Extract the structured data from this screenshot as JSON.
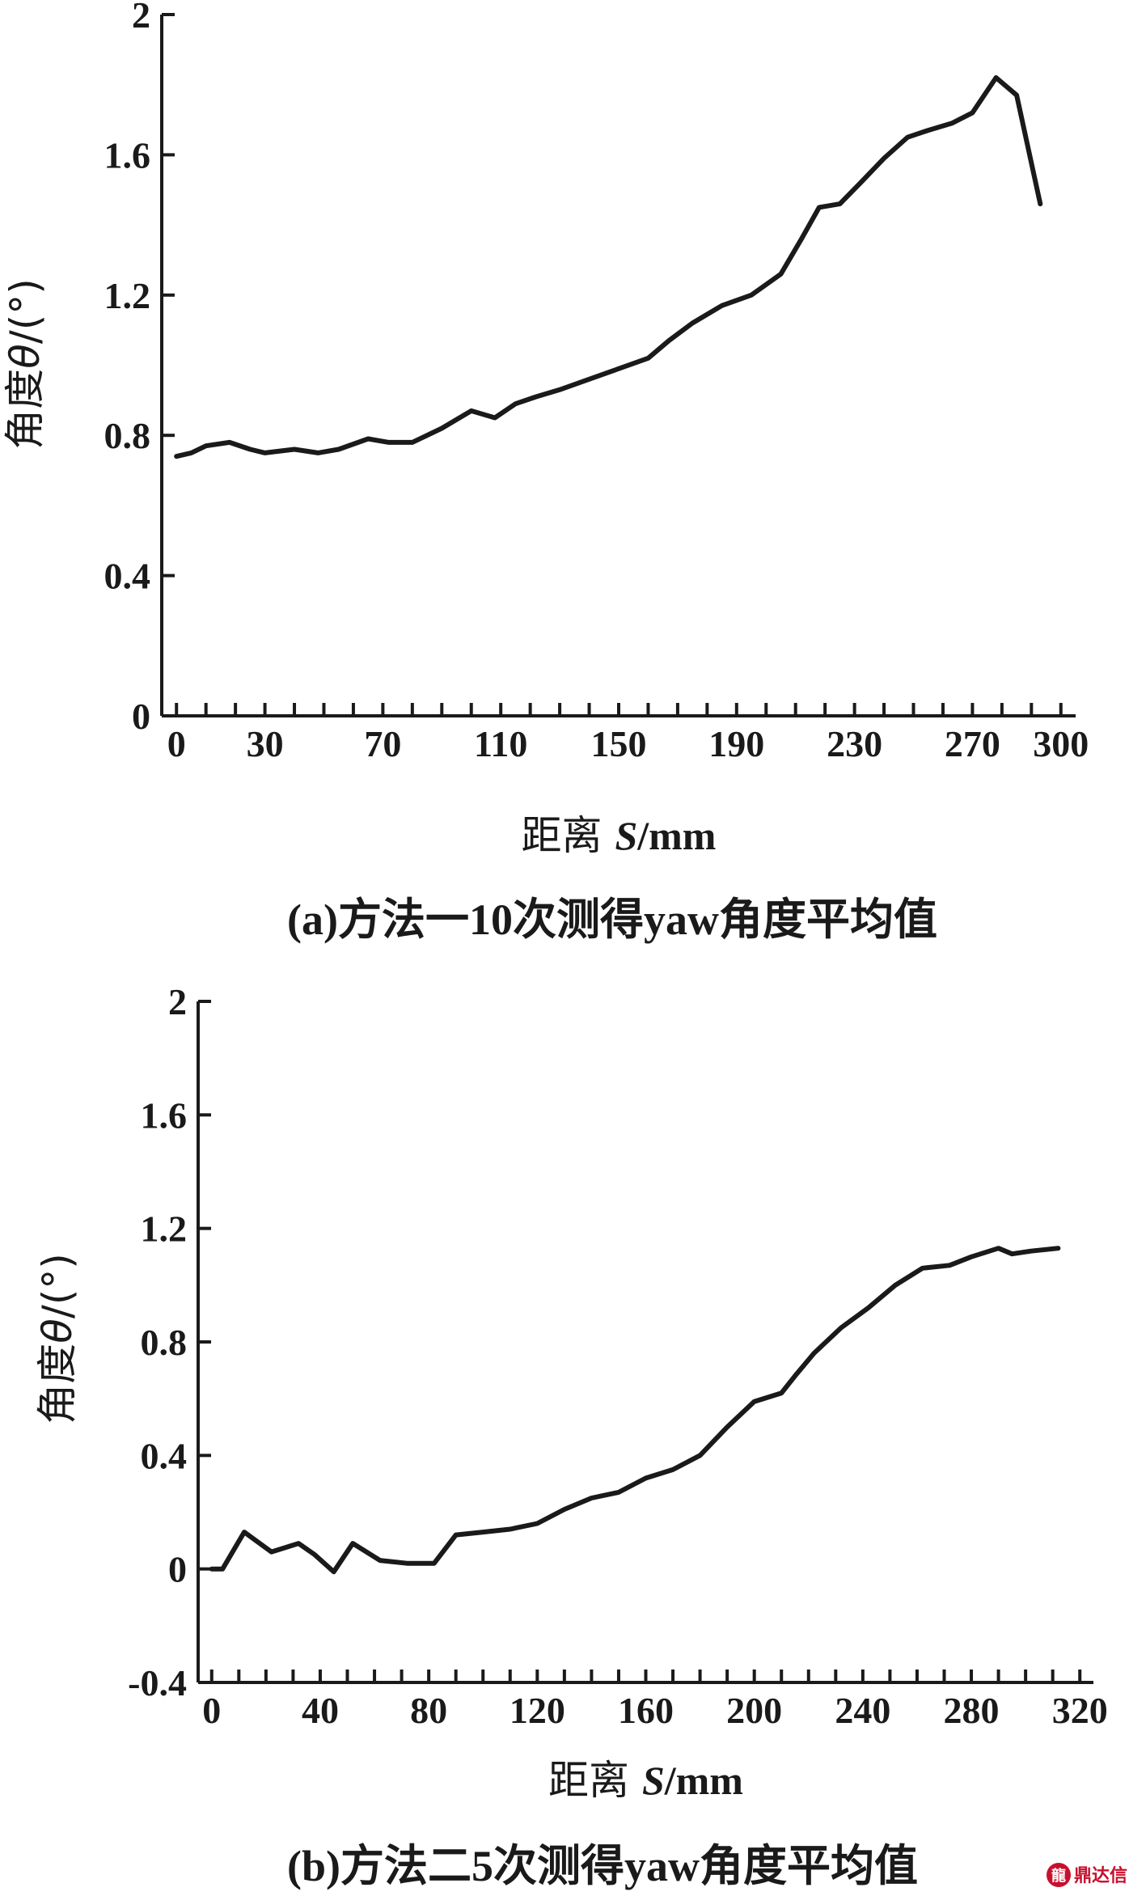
{
  "chart_data": [
    {
      "type": "line",
      "title": "",
      "caption": "(a)方法一10次测得yaw角度平均值",
      "xlabel": "距离 S/mm",
      "ylabel": "角度θ/(°)",
      "xlabel_parts": [
        "距离 ",
        "S",
        "/mm"
      ],
      "ylabel_parts": [
        "角度",
        "θ",
        "/(°)"
      ],
      "xlim": [
        -5,
        305
      ],
      "ylim": [
        0,
        2
      ],
      "xticks": [
        0,
        30,
        70,
        110,
        150,
        190,
        230,
        270,
        300
      ],
      "yticks": [
        0,
        0.4,
        0.8,
        1.2,
        1.6,
        2
      ],
      "ytick_labels": [
        "0",
        "0.4",
        "0.8",
        "1.2",
        "1.6",
        "2"
      ],
      "minor_xtick_step": 10,
      "grid": false,
      "series": [
        {
          "x": [
            0,
            5,
            10,
            18,
            25,
            30,
            40,
            48,
            55,
            65,
            72,
            80,
            90,
            100,
            108,
            115,
            122,
            130,
            140,
            150,
            160,
            167,
            175,
            185,
            195,
            205,
            212,
            218,
            225,
            232,
            240,
            248,
            255,
            263,
            270,
            278,
            285,
            293
          ],
          "y": [
            0.74,
            0.75,
            0.77,
            0.78,
            0.76,
            0.75,
            0.76,
            0.75,
            0.76,
            0.79,
            0.78,
            0.78,
            0.82,
            0.87,
            0.85,
            0.89,
            0.91,
            0.93,
            0.96,
            0.99,
            1.02,
            1.07,
            1.12,
            1.17,
            1.2,
            1.26,
            1.36,
            1.45,
            1.46,
            1.52,
            1.59,
            1.65,
            1.67,
            1.69,
            1.72,
            1.82,
            1.77,
            1.46
          ]
        }
      ]
    },
    {
      "type": "line",
      "title": "",
      "caption": "(b)方法二5次测得yaw角度平均值",
      "xlabel": "距离 S/mm",
      "ylabel": "角度θ/(°)",
      "xlabel_parts": [
        "距离 ",
        "S",
        "/mm"
      ],
      "ylabel_parts": [
        "角度",
        "θ",
        "/(°)"
      ],
      "xlim": [
        -5,
        325
      ],
      "ylim": [
        -0.4,
        2
      ],
      "xticks": [
        0,
        40,
        80,
        120,
        160,
        200,
        240,
        280,
        320
      ],
      "yticks": [
        -0.4,
        0,
        0.4,
        0.8,
        1.2,
        1.6,
        2
      ],
      "ytick_labels": [
        "-0.4",
        "0",
        "0.4",
        "0.8",
        "1.2",
        "1.6",
        "2"
      ],
      "minor_xtick_step": 10,
      "grid": false,
      "series": [
        {
          "x": [
            0,
            4,
            12,
            22,
            32,
            38,
            45,
            52,
            62,
            72,
            82,
            90,
            100,
            110,
            120,
            130,
            140,
            150,
            160,
            170,
            180,
            190,
            200,
            210,
            215,
            222,
            232,
            242,
            252,
            262,
            272,
            280,
            290,
            295,
            302,
            312
          ],
          "y": [
            0.0,
            0.0,
            0.13,
            0.06,
            0.09,
            0.05,
            -0.01,
            0.09,
            0.03,
            0.02,
            0.02,
            0.12,
            0.13,
            0.14,
            0.16,
            0.21,
            0.25,
            0.27,
            0.32,
            0.35,
            0.4,
            0.5,
            0.59,
            0.62,
            0.68,
            0.76,
            0.85,
            0.92,
            1.0,
            1.06,
            1.07,
            1.1,
            1.13,
            1.11,
            1.12,
            1.13
          ]
        }
      ]
    }
  ],
  "watermark": {
    "glyph": "龍",
    "text": "鼎达信"
  },
  "colors": {
    "ink": "#1a1a1a",
    "watermark": "#c8102e",
    "background": "#ffffff"
  }
}
